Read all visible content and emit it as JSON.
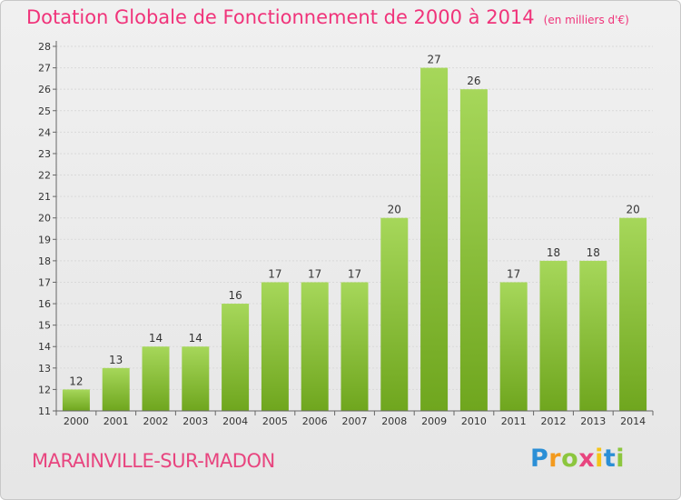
{
  "title": {
    "main": "Dotation Globale de Fonctionnement de 2000 à 2014",
    "unit": "(en milliers d'€)"
  },
  "commune": "MARAINVILLE-SUR-MADON",
  "logo": {
    "letters": [
      "P",
      "r",
      "o",
      "x",
      "i",
      "t",
      "i"
    ],
    "colors": [
      "#2b8fd6",
      "#f39a1e",
      "#8cc63e",
      "#e8457f",
      "#f5c419",
      "#2b8fd6",
      "#8cc63e"
    ]
  },
  "colors": {
    "bar_light": "#a6d75a",
    "bar_dark": "#6fa61e",
    "accent": "#f0337a"
  },
  "chart_data": {
    "type": "bar",
    "title": "Dotation Globale de Fonctionnement de 2000 à 2014",
    "subtitle": "(en milliers d'€)",
    "xlabel": "",
    "ylabel": "",
    "categories": [
      "2000",
      "2001",
      "2002",
      "2003",
      "2004",
      "2005",
      "2006",
      "2007",
      "2008",
      "2009",
      "2010",
      "2011",
      "2012",
      "2013",
      "2014"
    ],
    "values": [
      12,
      13,
      14,
      14,
      16,
      17,
      17,
      17,
      20,
      27,
      26,
      17,
      18,
      18,
      20
    ],
    "ylim": [
      11,
      28
    ],
    "yticks": [
      11,
      12,
      13,
      14,
      15,
      16,
      17,
      18,
      19,
      20,
      21,
      22,
      23,
      24,
      25,
      26,
      27,
      28
    ],
    "grid": true,
    "legend": "none"
  }
}
